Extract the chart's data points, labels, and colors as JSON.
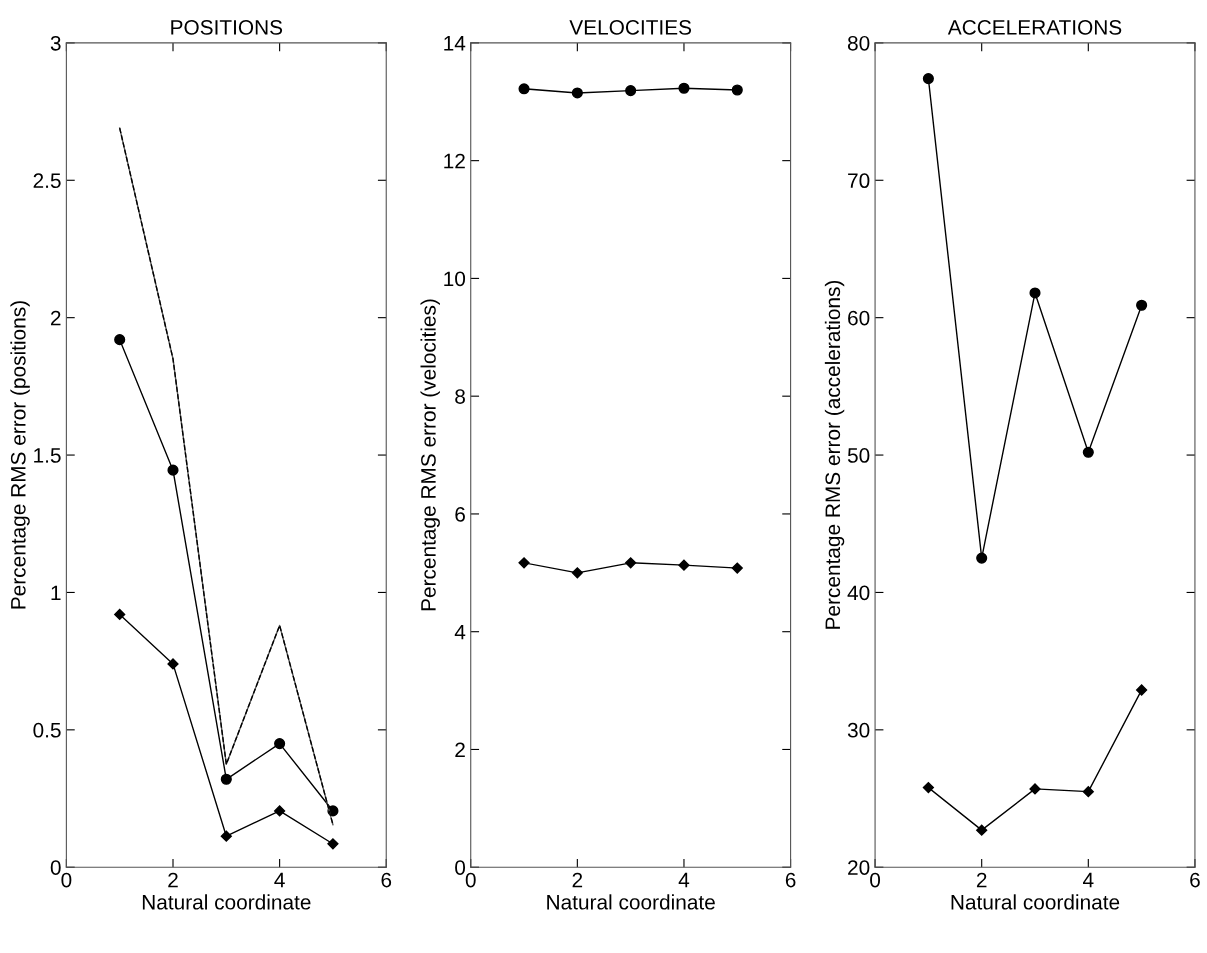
{
  "chart_data": [
    {
      "type": "line",
      "title": "POSITIONS",
      "xlabel": "Natural coordinate",
      "ylabel": "Percentage RMS error (positions)",
      "x": [
        1,
        2,
        3,
        4,
        5
      ],
      "xlim": [
        0,
        6
      ],
      "xticks": [
        0,
        2,
        4,
        6
      ],
      "ylim": [
        0,
        3
      ],
      "yticks": [
        0,
        0.5,
        1,
        1.5,
        2,
        2.5,
        3
      ],
      "grid": false,
      "series": [
        {
          "color": "#000000",
          "marker": "circle",
          "line_style": "solid",
          "values": [
            1.92,
            1.445,
            0.32,
            0.45,
            0.205
          ]
        },
        {
          "color": "#000000",
          "marker": "diamond",
          "line_style": "solid",
          "values": [
            0.92,
            0.74,
            0.113,
            0.205,
            0.085
          ]
        },
        {
          "color": "#555555",
          "marker": "none",
          "line_style": "solid",
          "values": [
            2.69,
            1.85,
            0.375,
            0.88,
            0.155
          ]
        },
        {
          "color": "#000000",
          "marker": "none",
          "line_style": "dashed",
          "values": [
            2.69,
            1.85,
            0.375,
            0.88,
            0.155
          ]
        }
      ]
    },
    {
      "type": "line",
      "title": "VELOCITIES",
      "xlabel": "Natural coordinate",
      "ylabel": "Percentage RMS error (velocities)",
      "x": [
        1,
        2,
        3,
        4,
        5
      ],
      "xlim": [
        0,
        6
      ],
      "xticks": [
        0,
        2,
        4,
        6
      ],
      "ylim": [
        0,
        14
      ],
      "yticks": [
        0,
        2,
        4,
        6,
        8,
        10,
        12,
        14
      ],
      "grid": false,
      "series": [
        {
          "color": "#000000",
          "marker": "circle",
          "line_style": "solid",
          "values": [
            13.22,
            13.15,
            13.19,
            13.23,
            13.2
          ]
        },
        {
          "color": "#000000",
          "marker": "diamond",
          "line_style": "solid",
          "values": [
            5.17,
            5.0,
            5.17,
            5.13,
            5.08
          ]
        }
      ]
    },
    {
      "type": "line",
      "title": "ACCELERATIONS",
      "xlabel": "Natural coordinate",
      "ylabel": "Percentage RMS error (accelerations)",
      "x": [
        1,
        2,
        3,
        4,
        5
      ],
      "xlim": [
        0,
        6
      ],
      "xticks": [
        0,
        2,
        4,
        6
      ],
      "ylim": [
        20,
        80
      ],
      "yticks": [
        20,
        30,
        40,
        50,
        60,
        70,
        80
      ],
      "grid": false,
      "series": [
        {
          "color": "#000000",
          "marker": "circle",
          "line_style": "solid",
          "values": [
            77.4,
            42.5,
            61.8,
            50.2,
            60.9
          ]
        },
        {
          "color": "#000000",
          "marker": "diamond",
          "line_style": "solid",
          "values": [
            25.8,
            22.7,
            25.7,
            25.5,
            32.9
          ]
        }
      ]
    }
  ]
}
